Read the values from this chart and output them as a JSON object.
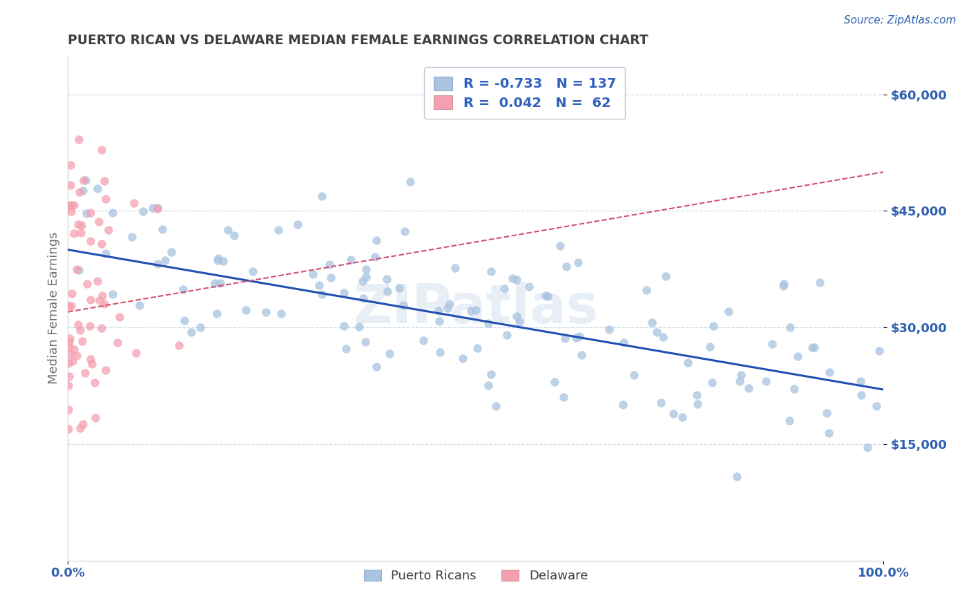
{
  "title": "PUERTO RICAN VS DELAWARE MEDIAN FEMALE EARNINGS CORRELATION CHART",
  "source": "Source: ZipAtlas.com",
  "ylabel": "Median Female Earnings",
  "x_min": 0.0,
  "x_max": 1.0,
  "y_min": 0,
  "y_max": 65000,
  "x_ticks": [
    0.0,
    1.0
  ],
  "x_tick_labels": [
    "0.0%",
    "100.0%"
  ],
  "y_ticks": [
    15000,
    30000,
    45000,
    60000
  ],
  "y_tick_labels": [
    "$15,000",
    "$30,000",
    "$45,000",
    "$60,000"
  ],
  "blue_R": -0.733,
  "blue_N": 137,
  "pink_R": 0.042,
  "pink_N": 62,
  "blue_color": "#a8c4e0",
  "pink_color": "#f4a0b0",
  "blue_line_color": "#2050b0",
  "pink_line_color": "#d05070",
  "legend_label_blue": "Puerto Ricans",
  "legend_label_pink": "Delaware",
  "watermark": "ZIPatlas",
  "title_color": "#404040",
  "axis_label_color": "#707070",
  "tick_color": "#3060b0",
  "background_color": "#ffffff",
  "grid_color": "#c8d8e8",
  "legend_text_color": "#3060c0",
  "legend_box_border": "#c0c8d8",
  "blue_line_intercept": 40000,
  "blue_line_slope": -18000,
  "pink_line_intercept": 32000,
  "pink_line_slope": 18000
}
